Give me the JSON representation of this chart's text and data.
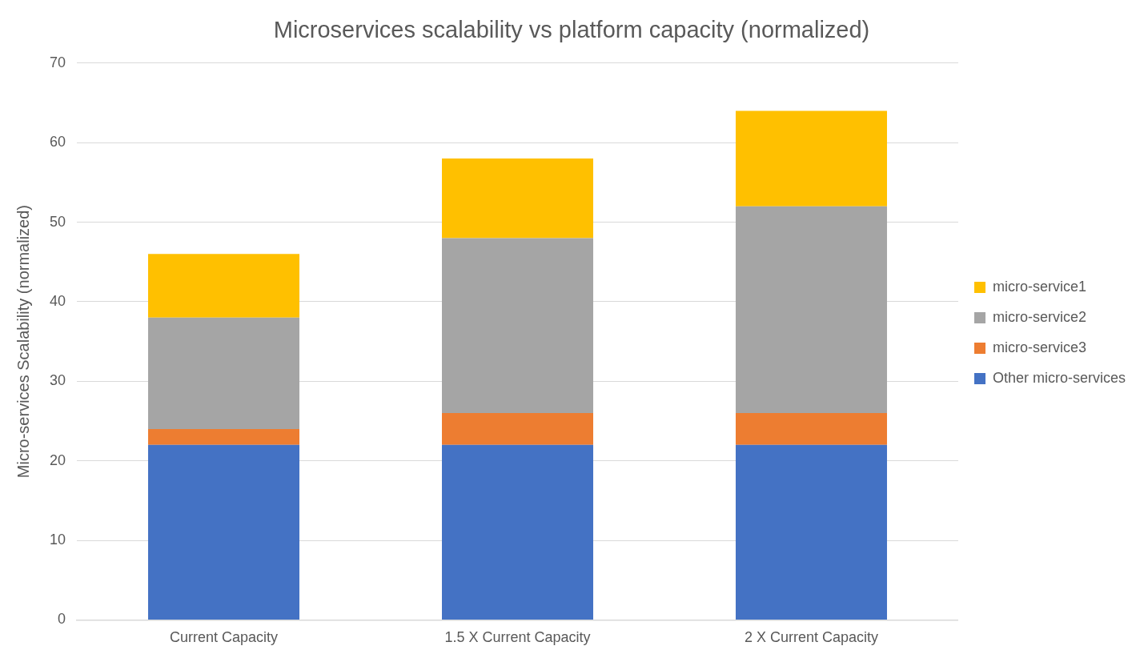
{
  "chart_data": {
    "type": "bar",
    "title": "Microservices scalability vs platform capacity (normalized)",
    "ylabel": "Micro-services Scalability (normalized)",
    "categories": [
      "Current Capacity",
      "1.5 X Current Capacity",
      "2 X Current Capacity"
    ],
    "stacked": true,
    "series": [
      {
        "name": "Other micro-services",
        "color": "#4472c4",
        "values": [
          22,
          22,
          22
        ]
      },
      {
        "name": "micro-service3",
        "color": "#ed7d31",
        "values": [
          2,
          4,
          4
        ]
      },
      {
        "name": "micro-service2",
        "color": "#a5a5a5",
        "values": [
          14,
          22,
          26
        ]
      },
      {
        "name": "micro-service1",
        "color": "#ffc000",
        "values": [
          8,
          10,
          12
        ]
      }
    ],
    "ylim": [
      0,
      70
    ],
    "yticks": [
      0,
      10,
      20,
      30,
      40,
      50,
      60,
      70
    ],
    "grid": "y",
    "legend": "right"
  }
}
